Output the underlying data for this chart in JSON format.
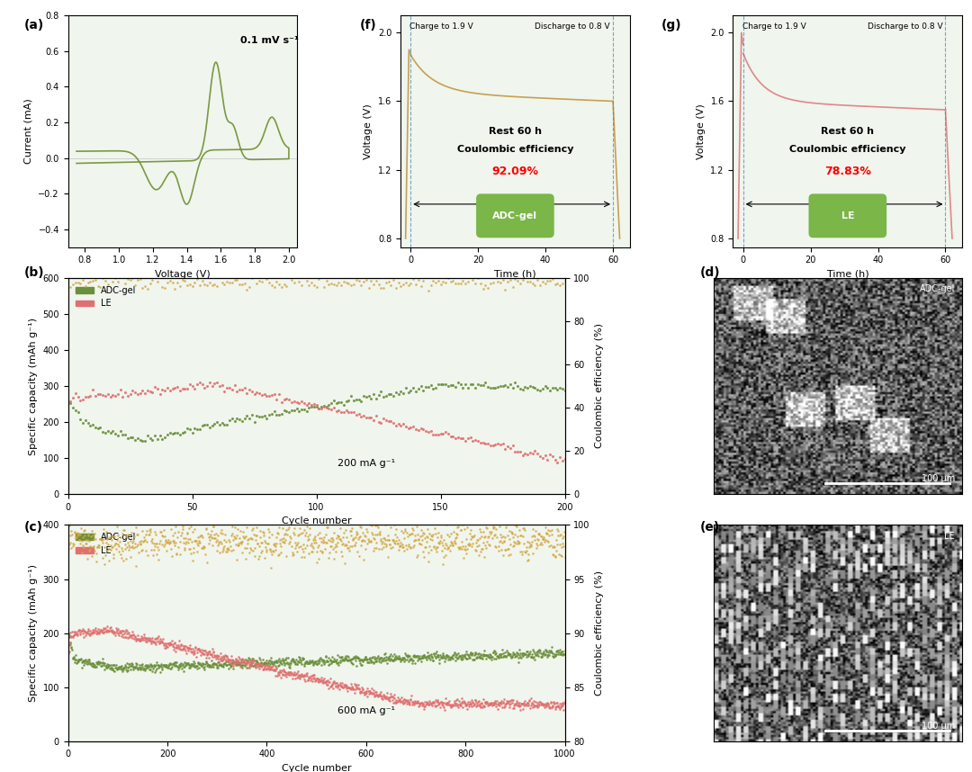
{
  "panel_labels": [
    "(a)",
    "(b)",
    "(c)",
    "(d)",
    "(e)",
    "(f)",
    "(g)"
  ],
  "bg_color_light_green": "#f0f5ee",
  "bg_color_white": "#ffffff",
  "color_adcgel_green": "#6b8f3a",
  "color_le_red": "#e07070",
  "color_ce_gold": "#d4a843",
  "color_cv_green": "#7a9a40",
  "color_adcgel_orange": "#c8a050",
  "color_le_pink": "#e08080",
  "cv_annotation": "0.1 mV s⁻¹",
  "cv_xlabel": "Voltage (V)",
  "cv_ylabel": "Current (mA)",
  "cv_xlim": [
    0.7,
    2.05
  ],
  "cv_ylim": [
    -0.5,
    0.8
  ],
  "cv_xticks": [
    0.8,
    1.0,
    1.2,
    1.4,
    1.6,
    1.8,
    2.0
  ],
  "f_xlabel": "Time (h)",
  "f_ylabel": "Voltage (V)",
  "f_xlim": [
    -3,
    65
  ],
  "f_ylim": [
    0.75,
    2.1
  ],
  "f_yticks": [
    0.8,
    1.2,
    1.6,
    2.0
  ],
  "f_xticks": [
    0,
    20,
    40,
    60
  ],
  "f_charge_label": "Charge to 1.9 V",
  "f_discharge_label": "Discharge to 0.8 V",
  "f_rest_label": "Rest 60 h",
  "f_ce_label": "Coulombic efficiency",
  "f_ce_value": "92.09%",
  "f_sample_label": "ADC-gel",
  "f_color": "#c8a050",
  "g_xlabel": "Time (h)",
  "g_ylabel": "Voltage (V)",
  "g_xlim": [
    -3,
    65
  ],
  "g_ylim": [
    0.75,
    2.1
  ],
  "g_yticks": [
    0.8,
    1.2,
    1.6,
    2.0
  ],
  "g_xticks": [
    0,
    20,
    40,
    60
  ],
  "g_charge_label": "Charge to 1.9 V",
  "g_discharge_label": "Discharge to 0.8 V",
  "g_rest_label": "Rest 60 h",
  "g_ce_label": "Coulombic efficiency",
  "g_ce_value": "78.83%",
  "g_sample_label": "LE",
  "g_color": "#e08888",
  "b_xlabel": "Cycle number",
  "b_ylabel": "Specific capacity (mAh g⁻¹)",
  "b_ylabel2": "Coulombic efficiency (%)",
  "b_xlim": [
    0,
    200
  ],
  "b_ylim": [
    0,
    600
  ],
  "b_ylim2": [
    0,
    100
  ],
  "b_xticks": [
    0,
    50,
    100,
    150,
    200
  ],
  "b_annotation": "200 mA g⁻¹",
  "c_xlabel": "Cycle number",
  "c_ylabel": "Specific capacity (mAh g⁻¹)",
  "c_ylabel2": "Coulombic efficiency (%)",
  "c_xlim": [
    0,
    1000
  ],
  "c_ylim": [
    0,
    400
  ],
  "c_ylim2": [
    80,
    100
  ],
  "c_xticks": [
    0,
    200,
    400,
    600,
    800,
    1000
  ],
  "c_annotation": "600 mA g⁻¹"
}
